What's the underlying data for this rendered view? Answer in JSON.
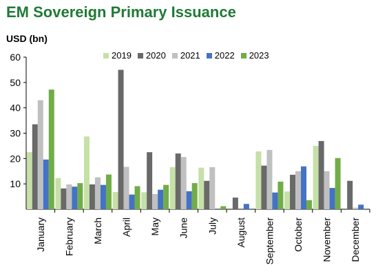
{
  "title": "EM Sovereign Primary Issuance",
  "chart_data": {
    "type": "bar",
    "title": "EM Sovereign Primary Issuance",
    "ylabel": "USD (bn)",
    "xlabel": "",
    "ylim": [
      0,
      60
    ],
    "yticks": [
      10,
      20,
      30,
      40,
      50,
      60
    ],
    "grid": false,
    "legend_position": "top",
    "categories": [
      "January",
      "February",
      "March",
      "April",
      "May",
      "June",
      "July",
      "August",
      "September",
      "October",
      "November",
      "December"
    ],
    "series": [
      {
        "name": "2019",
        "color": "#c6e0a8",
        "values": [
          22.5,
          12.3,
          28.7,
          6.8,
          6.7,
          16.6,
          16.4,
          0.0,
          22.8,
          7.0,
          25.0,
          0.0
        ]
      },
      {
        "name": "2020",
        "color": "#696969",
        "values": [
          33.5,
          8.2,
          9.8,
          55.0,
          22.5,
          22.0,
          11.2,
          4.6,
          17.2,
          13.6,
          26.9,
          11.2
        ]
      },
      {
        "name": "2021",
        "color": "#c0c0c0",
        "values": [
          43.0,
          9.8,
          12.6,
          16.7,
          6.0,
          20.6,
          16.6,
          0.0,
          23.4,
          15.0,
          15.0,
          0.6
        ]
      },
      {
        "name": "2022",
        "color": "#4472c4",
        "values": [
          19.6,
          8.9,
          9.6,
          5.8,
          7.7,
          7.1,
          0.0,
          2.1,
          6.6,
          16.9,
          8.4,
          1.8
        ]
      },
      {
        "name": "2023",
        "color": "#70ad47",
        "values": [
          47.2,
          10.3,
          13.7,
          9.1,
          9.6,
          10.3,
          1.2,
          0.0,
          10.9,
          3.6,
          20.2,
          0.0
        ]
      }
    ]
  }
}
